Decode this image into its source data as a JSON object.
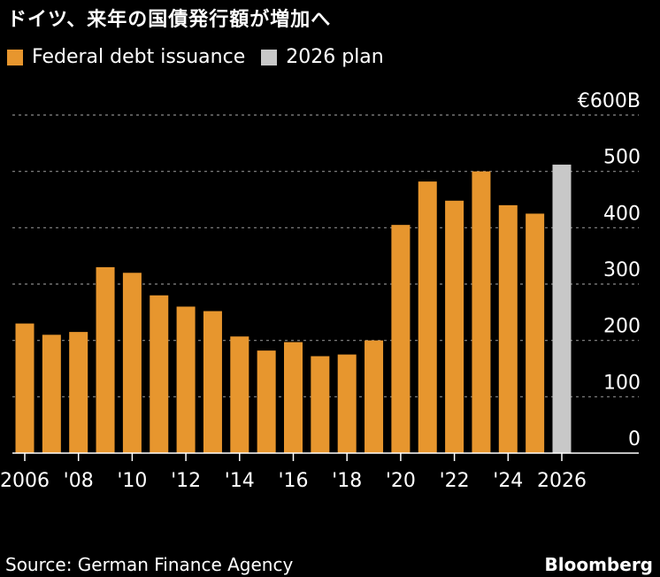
{
  "title": "ドイツ、来年の国債発行額が増加へ",
  "legend": [
    {
      "label": "Federal debt issuance",
      "color": "#e7962e"
    },
    {
      "label": "2026 plan",
      "color": "#c8c8c8"
    }
  ],
  "source": "Source: German Finance Agency",
  "brand": "Bloomberg",
  "chart_data": {
    "type": "bar",
    "categories": [
      "2006",
      "2007",
      "2008",
      "2009",
      "2010",
      "2011",
      "2012",
      "2013",
      "2014",
      "2015",
      "2016",
      "2017",
      "2018",
      "2019",
      "2020",
      "2021",
      "2022",
      "2023",
      "2024",
      "2025",
      "2026"
    ],
    "x_tick_labels": [
      {
        "category": "2006",
        "label": "2006"
      },
      {
        "category": "2008",
        "label": "'08"
      },
      {
        "category": "2010",
        "label": "'10"
      },
      {
        "category": "2012",
        "label": "'12"
      },
      {
        "category": "2014",
        "label": "'14"
      },
      {
        "category": "2016",
        "label": "'16"
      },
      {
        "category": "2018",
        "label": "'18"
      },
      {
        "category": "2020",
        "label": "'20"
      },
      {
        "category": "2022",
        "label": "'22"
      },
      {
        "category": "2024",
        "label": "'24"
      },
      {
        "category": "2026",
        "label": "2026"
      }
    ],
    "series": [
      {
        "name": "Federal debt issuance",
        "color": "#e7962e",
        "values": [
          230,
          210,
          215,
          330,
          320,
          280,
          260,
          252,
          207,
          182,
          197,
          172,
          175,
          200,
          405,
          482,
          448,
          500,
          440,
          425,
          null
        ]
      },
      {
        "name": "2026 plan",
        "color": "#c8c8c8",
        "values": [
          null,
          null,
          null,
          null,
          null,
          null,
          null,
          null,
          null,
          null,
          null,
          null,
          null,
          null,
          null,
          null,
          null,
          null,
          null,
          null,
          512
        ]
      }
    ],
    "y_ticks": [
      {
        "value": 0,
        "label": "0"
      },
      {
        "value": 100,
        "label": "100"
      },
      {
        "value": 200,
        "label": "200"
      },
      {
        "value": 300,
        "label": "300"
      },
      {
        "value": 400,
        "label": "400"
      },
      {
        "value": 500,
        "label": "500"
      },
      {
        "value": 600,
        "label": "€600B"
      }
    ],
    "ylim": [
      0,
      600
    ],
    "grid": true
  }
}
